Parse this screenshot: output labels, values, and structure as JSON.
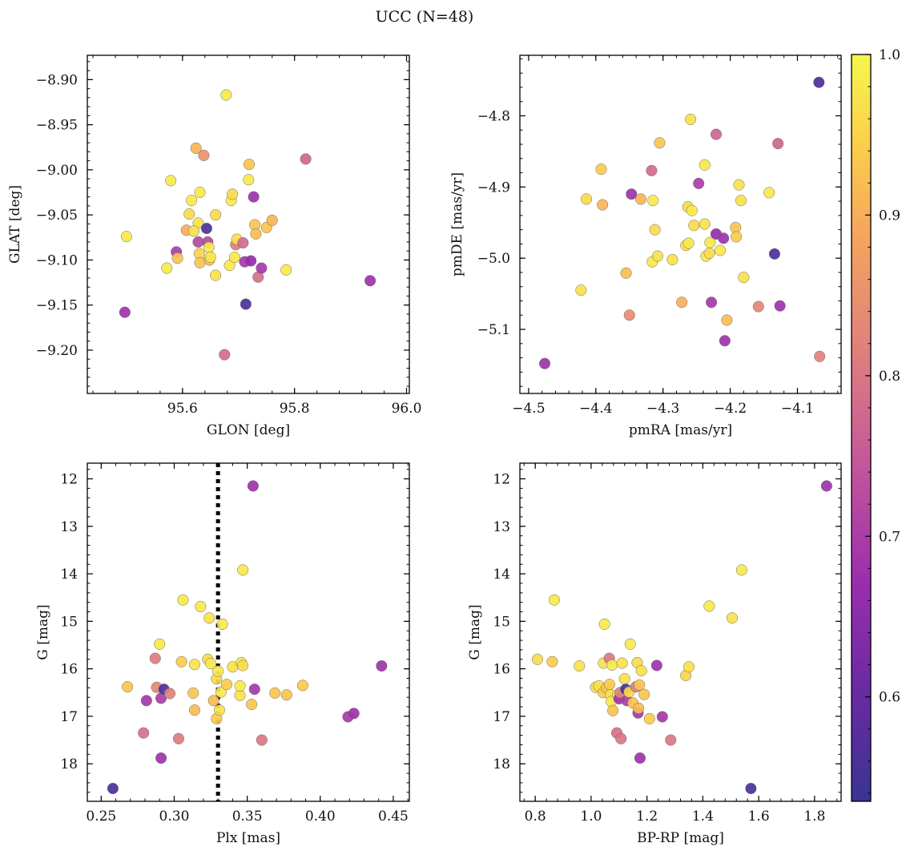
{
  "figure": {
    "title": "UCC (N=48)"
  },
  "colorbar": {
    "cmap": "plasma",
    "range": [
      0.535,
      1.0
    ],
    "ticks": [
      0.6,
      0.7,
      0.8,
      0.9,
      1.0
    ],
    "tick_labels": [
      "0.6",
      "0.7",
      "0.8",
      "0.9",
      "1.0"
    ]
  },
  "chart_data": [
    {
      "type": "scatter",
      "xlabel": "GLON [deg]",
      "ylabel": "GLAT [deg]",
      "xlim": [
        95.43,
        96.005
      ],
      "ylim": [
        -9.248,
        -8.873
      ],
      "xticks": [
        95.6,
        95.8,
        96.0
      ],
      "xtick_labels": [
        "95.6",
        "95.8",
        "96.0"
      ],
      "yticks": [
        -9.2,
        -9.15,
        -9.1,
        -9.05,
        -9.0,
        -8.95,
        -8.9
      ],
      "ytick_labels": [
        "−9.20",
        "−9.15",
        "−9.10",
        "−9.05",
        "−9.00",
        "−8.95",
        "−8.90"
      ],
      "points": [
        {
          "x": 95.5,
          "y": -9.074,
          "c": 0.98
        },
        {
          "x": 95.497,
          "y": -9.158,
          "c": 0.68
        },
        {
          "x": 95.579,
          "y": -9.012,
          "c": 0.98
        },
        {
          "x": 95.572,
          "y": -9.109,
          "c": 0.98
        },
        {
          "x": 95.589,
          "y": -9.091,
          "c": 0.7
        },
        {
          "x": 95.591,
          "y": -9.098,
          "c": 0.93
        },
        {
          "x": 95.624,
          "y": -8.976,
          "c": 0.91
        },
        {
          "x": 95.638,
          "y": -8.984,
          "c": 0.85
        },
        {
          "x": 95.607,
          "y": -9.067,
          "c": 0.9
        },
        {
          "x": 95.612,
          "y": -9.049,
          "c": 0.96
        },
        {
          "x": 95.616,
          "y": -9.034,
          "c": 0.98
        },
        {
          "x": 95.631,
          "y": -9.025,
          "c": 0.98
        },
        {
          "x": 95.628,
          "y": -9.059,
          "c": 0.97
        },
        {
          "x": 95.62,
          "y": -9.068,
          "c": 0.97
        },
        {
          "x": 95.628,
          "y": -9.08,
          "c": 0.72
        },
        {
          "x": 95.63,
          "y": -9.093,
          "c": 0.95
        },
        {
          "x": 95.631,
          "y": -9.103,
          "c": 0.93
        },
        {
          "x": 95.643,
          "y": -9.065,
          "c": 0.56
        },
        {
          "x": 95.645,
          "y": -9.08,
          "c": 0.72
        },
        {
          "x": 95.647,
          "y": -9.086,
          "c": 0.98
        },
        {
          "x": 95.648,
          "y": -9.1,
          "c": 0.92
        },
        {
          "x": 95.65,
          "y": -9.097,
          "c": 0.98
        },
        {
          "x": 95.659,
          "y": -9.05,
          "c": 0.96
        },
        {
          "x": 95.659,
          "y": -9.117,
          "c": 0.97
        },
        {
          "x": 95.678,
          "y": -8.917,
          "c": 0.98
        },
        {
          "x": 95.675,
          "y": -9.205,
          "c": 0.78
        },
        {
          "x": 95.684,
          "y": -9.106,
          "c": 0.98
        },
        {
          "x": 95.687,
          "y": -9.034,
          "c": 0.98
        },
        {
          "x": 95.689,
          "y": -9.027,
          "c": 0.96
        },
        {
          "x": 95.693,
          "y": -9.097,
          "c": 0.98
        },
        {
          "x": 95.695,
          "y": -9.083,
          "c": 0.81
        },
        {
          "x": 95.697,
          "y": -9.077,
          "c": 0.97
        },
        {
          "x": 95.708,
          "y": -9.081,
          "c": 0.78
        },
        {
          "x": 95.711,
          "y": -9.102,
          "c": 0.69
        },
        {
          "x": 95.713,
          "y": -9.149,
          "c": 0.56
        },
        {
          "x": 95.719,
          "y": -8.994,
          "c": 0.93
        },
        {
          "x": 95.718,
          "y": -9.011,
          "c": 0.98
        },
        {
          "x": 95.722,
          "y": -9.101,
          "c": 0.66
        },
        {
          "x": 95.727,
          "y": -9.03,
          "c": 0.68
        },
        {
          "x": 95.729,
          "y": -9.061,
          "c": 0.93
        },
        {
          "x": 95.731,
          "y": -9.071,
          "c": 0.92
        },
        {
          "x": 95.735,
          "y": -9.119,
          "c": 0.79
        },
        {
          "x": 95.741,
          "y": -9.109,
          "c": 0.69
        },
        {
          "x": 95.75,
          "y": -9.064,
          "c": 0.93
        },
        {
          "x": 95.76,
          "y": -9.056,
          "c": 0.91
        },
        {
          "x": 95.785,
          "y": -9.111,
          "c": 0.98
        },
        {
          "x": 95.82,
          "y": -8.988,
          "c": 0.77
        },
        {
          "x": 95.935,
          "y": -9.123,
          "c": 0.68
        }
      ]
    },
    {
      "type": "scatter",
      "xlabel": "pmRA [mas/yr]",
      "ylabel": "pmDE [mas/yr]",
      "xlim": [
        -4.513,
        -4.035
      ],
      "ylim": [
        -5.19,
        -4.715
      ],
      "xticks": [
        -4.5,
        -4.4,
        -4.3,
        -4.2,
        -4.1
      ],
      "xtick_labels": [
        "−4.5",
        "−4.4",
        "−4.3",
        "−4.2",
        "−4.1"
      ],
      "yticks": [
        -5.1,
        -5.0,
        -4.9,
        -4.8
      ],
      "ytick_labels": [
        "−5.1",
        "−5.0",
        "−4.9",
        "−4.8"
      ],
      "points": [
        {
          "x": -4.476,
          "y": -5.148,
          "c": 0.68
        },
        {
          "x": -4.422,
          "y": -5.045,
          "c": 0.97
        },
        {
          "x": -4.414,
          "y": -4.917,
          "c": 0.96
        },
        {
          "x": -4.392,
          "y": -4.875,
          "c": 0.94
        },
        {
          "x": -4.39,
          "y": -4.925,
          "c": 0.91
        },
        {
          "x": -4.355,
          "y": -5.021,
          "c": 0.92
        },
        {
          "x": -4.35,
          "y": -5.08,
          "c": 0.84
        },
        {
          "x": -4.347,
          "y": -4.91,
          "c": 0.68
        },
        {
          "x": -4.333,
          "y": -4.917,
          "c": 0.91
        },
        {
          "x": -4.317,
          "y": -4.877,
          "c": 0.78
        },
        {
          "x": -4.315,
          "y": -4.919,
          "c": 0.98
        },
        {
          "x": -4.316,
          "y": -5.005,
          "c": 0.98
        },
        {
          "x": -4.312,
          "y": -4.96,
          "c": 0.96
        },
        {
          "x": -4.308,
          "y": -4.997,
          "c": 0.97
        },
        {
          "x": -4.305,
          "y": -4.838,
          "c": 0.93
        },
        {
          "x": -4.286,
          "y": -5.002,
          "c": 0.97
        },
        {
          "x": -4.272,
          "y": -5.062,
          "c": 0.9
        },
        {
          "x": -4.266,
          "y": -4.982,
          "c": 0.97
        },
        {
          "x": -4.262,
          "y": -4.979,
          "c": 0.98
        },
        {
          "x": -4.263,
          "y": -4.928,
          "c": 0.96
        },
        {
          "x": -4.259,
          "y": -4.805,
          "c": 0.97
        },
        {
          "x": -4.257,
          "y": -4.933,
          "c": 0.98
        },
        {
          "x": -4.254,
          "y": -4.954,
          "c": 0.96
        },
        {
          "x": -4.247,
          "y": -4.895,
          "c": 0.7
        },
        {
          "x": -4.238,
          "y": -4.869,
          "c": 0.98
        },
        {
          "x": -4.238,
          "y": -4.952,
          "c": 0.97
        },
        {
          "x": -4.236,
          "y": -4.997,
          "c": 0.98
        },
        {
          "x": -4.231,
          "y": -4.993,
          "c": 0.96
        },
        {
          "x": -4.23,
          "y": -4.978,
          "c": 0.98
        },
        {
          "x": -4.228,
          "y": -5.062,
          "c": 0.69
        },
        {
          "x": -4.221,
          "y": -4.826,
          "c": 0.77
        },
        {
          "x": -4.221,
          "y": -4.966,
          "c": 0.66
        },
        {
          "x": -4.215,
          "y": -4.989,
          "c": 0.98
        },
        {
          "x": -4.21,
          "y": -4.972,
          "c": 0.68
        },
        {
          "x": -4.208,
          "y": -5.116,
          "c": 0.68
        },
        {
          "x": -4.205,
          "y": -5.087,
          "c": 0.92
        },
        {
          "x": -4.192,
          "y": -4.957,
          "c": 0.93
        },
        {
          "x": -4.191,
          "y": -4.97,
          "c": 0.94
        },
        {
          "x": -4.187,
          "y": -4.897,
          "c": 0.97
        },
        {
          "x": -4.184,
          "y": -4.919,
          "c": 0.97
        },
        {
          "x": -4.18,
          "y": -5.027,
          "c": 0.97
        },
        {
          "x": -4.158,
          "y": -5.068,
          "c": 0.83
        },
        {
          "x": -4.142,
          "y": -4.908,
          "c": 0.98
        },
        {
          "x": -4.134,
          "y": -4.994,
          "c": 0.56
        },
        {
          "x": -4.129,
          "y": -4.839,
          "c": 0.77
        },
        {
          "x": -4.126,
          "y": -5.067,
          "c": 0.68
        },
        {
          "x": -4.068,
          "y": -4.753,
          "c": 0.56
        },
        {
          "x": -4.067,
          "y": -5.138,
          "c": 0.82
        }
      ]
    },
    {
      "type": "scatter",
      "xlabel": "Plx [mas]",
      "ylabel": "G [mag]",
      "xlim": [
        0.2405,
        0.461
      ],
      "ylim": [
        18.79,
        11.67
      ],
      "vline": 0.33,
      "xticks": [
        0.25,
        0.3,
        0.35,
        0.4,
        0.45
      ],
      "xtick_labels": [
        "0.25",
        "0.30",
        "0.35",
        "0.40",
        "0.45"
      ],
      "yticks": [
        12,
        13,
        14,
        15,
        16,
        17,
        18
      ],
      "ytick_labels": [
        "12",
        "13",
        "14",
        "15",
        "16",
        "17",
        "18"
      ],
      "points": [
        {
          "x": 0.258,
          "y": 18.52,
          "c": 0.56
        },
        {
          "x": 0.268,
          "y": 16.38,
          "c": 0.93
        },
        {
          "x": 0.279,
          "y": 17.35,
          "c": 0.79
        },
        {
          "x": 0.281,
          "y": 16.67,
          "c": 0.69
        },
        {
          "x": 0.287,
          "y": 15.78,
          "c": 0.81
        },
        {
          "x": 0.288,
          "y": 16.39,
          "c": 0.83
        },
        {
          "x": 0.29,
          "y": 15.48,
          "c": 0.98
        },
        {
          "x": 0.291,
          "y": 17.88,
          "c": 0.68
        },
        {
          "x": 0.291,
          "y": 16.62,
          "c": 0.7
        },
        {
          "x": 0.293,
          "y": 16.43,
          "c": 0.56
        },
        {
          "x": 0.297,
          "y": 16.52,
          "c": 0.82
        },
        {
          "x": 0.303,
          "y": 17.47,
          "c": 0.81
        },
        {
          "x": 0.305,
          "y": 15.85,
          "c": 0.94
        },
        {
          "x": 0.306,
          "y": 14.55,
          "c": 0.98
        },
        {
          "x": 0.313,
          "y": 16.51,
          "c": 0.93
        },
        {
          "x": 0.314,
          "y": 15.91,
          "c": 0.97
        },
        {
          "x": 0.314,
          "y": 16.87,
          "c": 0.92
        },
        {
          "x": 0.318,
          "y": 14.69,
          "c": 0.98
        },
        {
          "x": 0.323,
          "y": 15.8,
          "c": 0.96
        },
        {
          "x": 0.324,
          "y": 14.93,
          "c": 0.97
        },
        {
          "x": 0.325,
          "y": 15.89,
          "c": 0.98
        },
        {
          "x": 0.327,
          "y": 16.67,
          "c": 0.92
        },
        {
          "x": 0.329,
          "y": 17.05,
          "c": 0.94
        },
        {
          "x": 0.329,
          "y": 16.21,
          "c": 0.96
        },
        {
          "x": 0.33,
          "y": 16.05,
          "c": 0.98
        },
        {
          "x": 0.331,
          "y": 16.87,
          "c": 0.97
        },
        {
          "x": 0.332,
          "y": 16.49,
          "c": 0.98
        },
        {
          "x": 0.333,
          "y": 15.06,
          "c": 0.98
        },
        {
          "x": 0.336,
          "y": 16.33,
          "c": 0.94
        },
        {
          "x": 0.34,
          "y": 15.96,
          "c": 0.97
        },
        {
          "x": 0.345,
          "y": 16.56,
          "c": 0.97
        },
        {
          "x": 0.345,
          "y": 16.36,
          "c": 0.98
        },
        {
          "x": 0.346,
          "y": 15.87,
          "c": 0.98
        },
        {
          "x": 0.347,
          "y": 13.92,
          "c": 0.98
        },
        {
          "x": 0.347,
          "y": 15.93,
          "c": 0.96
        },
        {
          "x": 0.353,
          "y": 16.75,
          "c": 0.93
        },
        {
          "x": 0.354,
          "y": 12.15,
          "c": 0.68
        },
        {
          "x": 0.355,
          "y": 16.43,
          "c": 0.69
        },
        {
          "x": 0.36,
          "y": 17.5,
          "c": 0.8
        },
        {
          "x": 0.369,
          "y": 16.51,
          "c": 0.93
        },
        {
          "x": 0.377,
          "y": 16.55,
          "c": 0.93
        },
        {
          "x": 0.388,
          "y": 16.35,
          "c": 0.94
        },
        {
          "x": 0.419,
          "y": 17.01,
          "c": 0.69
        },
        {
          "x": 0.423,
          "y": 16.94,
          "c": 0.68
        },
        {
          "x": 0.442,
          "y": 15.94,
          "c": 0.68
        }
      ]
    },
    {
      "type": "scatter",
      "xlabel": "BP-RP [mag]",
      "ylabel": "G [mag]",
      "xlim": [
        0.745,
        1.895
      ],
      "ylim": [
        18.79,
        11.67
      ],
      "xticks": [
        0.8,
        1.0,
        1.2,
        1.4,
        1.6,
        1.8
      ],
      "xtick_labels": [
        "0.8",
        "1.0",
        "1.2",
        "1.4",
        "1.6",
        "1.8"
      ],
      "yticks": [
        12,
        13,
        14,
        15,
        16,
        17,
        18
      ],
      "ytick_labels": [
        "12",
        "13",
        "14",
        "15",
        "16",
        "17",
        "18"
      ],
      "points": [
        {
          "x": 0.808,
          "y": 15.8,
          "c": 0.96
        },
        {
          "x": 0.861,
          "y": 15.85,
          "c": 0.94
        },
        {
          "x": 0.868,
          "y": 14.55,
          "c": 0.98
        },
        {
          "x": 0.958,
          "y": 15.94,
          "c": 0.97
        },
        {
          "x": 1.016,
          "y": 16.39,
          "c": 0.96
        },
        {
          "x": 1.028,
          "y": 16.36,
          "c": 0.97
        },
        {
          "x": 1.043,
          "y": 16.5,
          "c": 0.94
        },
        {
          "x": 1.044,
          "y": 15.88,
          "c": 0.97
        },
        {
          "x": 1.048,
          "y": 15.06,
          "c": 0.98
        },
        {
          "x": 1.055,
          "y": 16.4,
          "c": 0.93
        },
        {
          "x": 1.065,
          "y": 15.78,
          "c": 0.8
        },
        {
          "x": 1.066,
          "y": 16.33,
          "c": 0.94
        },
        {
          "x": 1.069,
          "y": 16.55,
          "c": 0.97
        },
        {
          "x": 1.072,
          "y": 16.69,
          "c": 0.98
        },
        {
          "x": 1.075,
          "y": 15.92,
          "c": 0.98
        },
        {
          "x": 1.078,
          "y": 16.88,
          "c": 0.93
        },
        {
          "x": 1.092,
          "y": 17.35,
          "c": 0.79
        },
        {
          "x": 1.095,
          "y": 16.55,
          "c": 0.98
        },
        {
          "x": 1.1,
          "y": 16.63,
          "c": 0.68
        },
        {
          "x": 1.104,
          "y": 16.5,
          "c": 0.82
        },
        {
          "x": 1.107,
          "y": 17.47,
          "c": 0.8
        },
        {
          "x": 1.111,
          "y": 15.88,
          "c": 0.97
        },
        {
          "x": 1.12,
          "y": 16.21,
          "c": 0.97
        },
        {
          "x": 1.124,
          "y": 16.43,
          "c": 0.56
        },
        {
          "x": 1.128,
          "y": 16.67,
          "c": 0.7
        },
        {
          "x": 1.136,
          "y": 16.49,
          "c": 0.96
        },
        {
          "x": 1.14,
          "y": 15.48,
          "c": 0.98
        },
        {
          "x": 1.15,
          "y": 16.72,
          "c": 0.93
        },
        {
          "x": 1.16,
          "y": 16.38,
          "c": 0.81
        },
        {
          "x": 1.165,
          "y": 15.87,
          "c": 0.96
        },
        {
          "x": 1.168,
          "y": 16.93,
          "c": 0.69
        },
        {
          "x": 1.17,
          "y": 16.83,
          "c": 0.92
        },
        {
          "x": 1.173,
          "y": 16.34,
          "c": 0.93
        },
        {
          "x": 1.175,
          "y": 17.88,
          "c": 0.68
        },
        {
          "x": 1.18,
          "y": 16.04,
          "c": 0.97
        },
        {
          "x": 1.19,
          "y": 16.54,
          "c": 0.93
        },
        {
          "x": 1.209,
          "y": 17.05,
          "c": 0.94
        },
        {
          "x": 1.235,
          "y": 15.93,
          "c": 0.68
        },
        {
          "x": 1.255,
          "y": 17.01,
          "c": 0.69
        },
        {
          "x": 1.285,
          "y": 17.5,
          "c": 0.8
        },
        {
          "x": 1.339,
          "y": 16.14,
          "c": 0.95
        },
        {
          "x": 1.35,
          "y": 15.96,
          "c": 0.97
        },
        {
          "x": 1.423,
          "y": 14.68,
          "c": 0.98
        },
        {
          "x": 1.505,
          "y": 14.93,
          "c": 0.97
        },
        {
          "x": 1.539,
          "y": 13.92,
          "c": 0.98
        },
        {
          "x": 1.572,
          "y": 18.52,
          "c": 0.56
        },
        {
          "x": 1.843,
          "y": 12.15,
          "c": 0.68
        }
      ]
    }
  ]
}
